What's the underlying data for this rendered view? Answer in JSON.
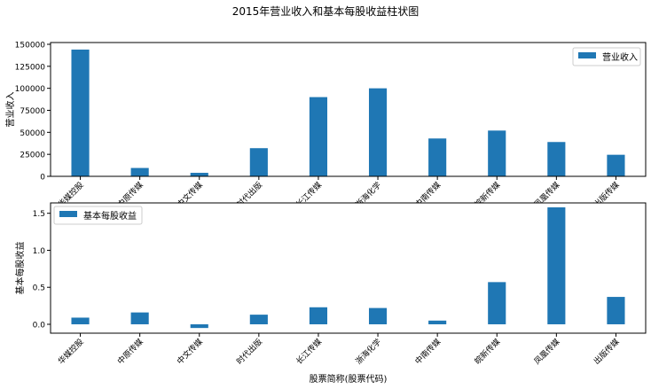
{
  "figure": {
    "title": "2015年营业收入和基本每股收益柱状图",
    "bar_color": "#1f77b4"
  },
  "chart_data": [
    {
      "type": "bar",
      "categories": [
        "华媒控股",
        "中原传媒",
        "中文传媒",
        "时代出版",
        "长江传媒",
        "浙海化学",
        "中南传媒",
        "皖新传媒",
        "凤凰传媒",
        "出版传媒"
      ],
      "series": [
        {
          "name": "营业收入",
          "values": [
            144000,
            9500,
            4000,
            32000,
            90000,
            100000,
            43000,
            52000,
            39000,
            24500
          ]
        }
      ],
      "xlabel": "",
      "ylabel": "营业收入",
      "ylim": [
        0,
        152000
      ],
      "yticks": [
        0,
        25000,
        50000,
        75000,
        100000,
        125000,
        150000
      ],
      "grid": false,
      "legend": "top-right"
    },
    {
      "type": "bar",
      "categories": [
        "华媒控股",
        "中原传媒",
        "中文传媒",
        "时代出版",
        "长江传媒",
        "浙海化学",
        "中南传媒",
        "皖新传媒",
        "凤凰传媒",
        "出版传媒"
      ],
      "series": [
        {
          "name": "基本每股收益",
          "values": [
            0.09,
            0.16,
            -0.05,
            0.13,
            0.23,
            0.22,
            0.05,
            0.57,
            1.58,
            0.37
          ]
        }
      ],
      "xlabel": "股票简称(股票代码)",
      "ylabel": "基本每股收益",
      "ylim": [
        -0.12,
        1.64
      ],
      "yticks": [
        0.0,
        0.5,
        1.0,
        1.5
      ],
      "grid": false,
      "legend": "top-left"
    }
  ]
}
